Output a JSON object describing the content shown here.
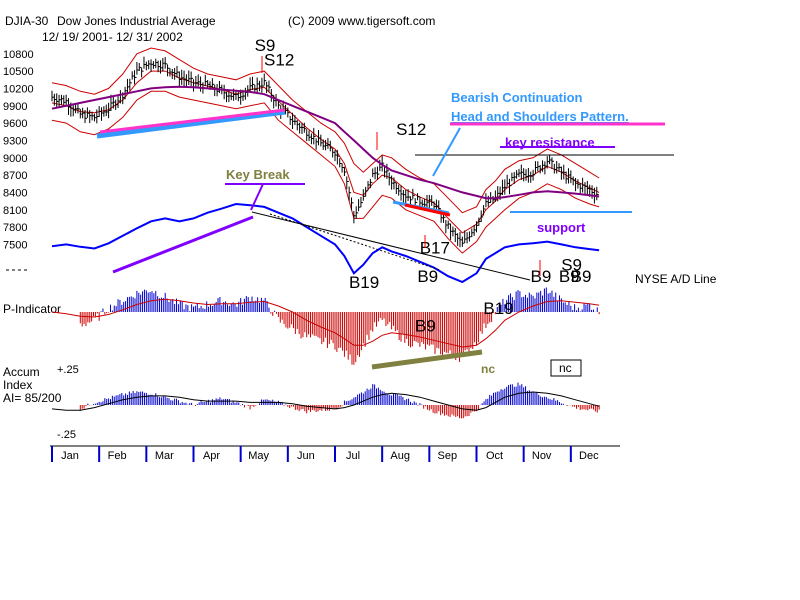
{
  "chart_data": {
    "type": "line",
    "header": {
      "symbol": "DJIA-30",
      "name": "Dow Jones Industrial Average",
      "copyright": "(C) 2009 www.tigersoft.com",
      "date_range": "12/ 19/ 2001- 12/ 31/ 2002"
    },
    "months": [
      "Jan",
      "Feb",
      "Mar",
      "Apr",
      "May",
      "Jun",
      "Jul",
      "Aug",
      "Sep",
      "Oct",
      "Nov",
      "Dec"
    ],
    "price_panel": {
      "y_ticks": [
        "10800",
        "10500",
        "10200",
        "9900",
        "9600",
        "9300",
        "9000",
        "8700",
        "8400",
        "8100",
        "7800",
        "7500"
      ],
      "ylim": [
        7300,
        10900
      ],
      "x_month_index": [
        0.0,
        0.3,
        0.6,
        0.9,
        1.2,
        1.5,
        1.8,
        2.1,
        2.4,
        2.7,
        3.0,
        3.3,
        3.6,
        3.9,
        4.2,
        4.5,
        4.8,
        5.1,
        5.4,
        5.7,
        6.0,
        6.2,
        6.4,
        6.6,
        6.8,
        7.0,
        7.2,
        7.5,
        7.8,
        8.1,
        8.4,
        8.7,
        9.0,
        9.2,
        9.4,
        9.6,
        9.9,
        10.2,
        10.5,
        10.8,
        11.1,
        11.4,
        11.6
      ],
      "close": [
        10050,
        9980,
        9750,
        9700,
        9850,
        10100,
        10500,
        10650,
        10600,
        10400,
        10300,
        10250,
        10150,
        10050,
        10200,
        10300,
        9900,
        9650,
        9450,
        9250,
        9100,
        8800,
        8000,
        8300,
        8700,
        8850,
        8600,
        8350,
        8250,
        8200,
        7800,
        7500,
        7850,
        8200,
        8300,
        8500,
        8700,
        8750,
        8950,
        8750,
        8550,
        8450,
        8350
      ],
      "ma_long": [
        9850,
        9900,
        9950,
        10000,
        10050,
        10100,
        10150,
        10200,
        10220,
        10230,
        10220,
        10200,
        10180,
        10160,
        10140,
        10100,
        10000,
        9900,
        9800,
        9700,
        9600,
        9450,
        9300,
        9150,
        9000,
        8880,
        8780,
        8700,
        8620,
        8560,
        8480,
        8400,
        8340,
        8300,
        8300,
        8320,
        8360,
        8400,
        8420,
        8400,
        8380,
        8350,
        8330
      ],
      "ma_short": [
        9950,
        9900,
        9800,
        9780,
        9830,
        10000,
        10300,
        10500,
        10500,
        10380,
        10300,
        10240,
        10180,
        10100,
        10180,
        10220,
        9980,
        9750,
        9520,
        9320,
        9150,
        8900,
        8400,
        8350,
        8550,
        8700,
        8650,
        8450,
        8320,
        8220,
        7950,
        7700,
        7850,
        8100,
        8250,
        8450,
        8620,
        8700,
        8850,
        8750,
        8600,
        8480,
        8400
      ],
      "band_upper": [
        10300,
        10250,
        10150,
        10100,
        10200,
        10450,
        10800,
        10900,
        10850,
        10700,
        10550,
        10450,
        10400,
        10350,
        10450,
        10500,
        10250,
        10000,
        9800,
        9600,
        9450,
        9250,
        8900,
        8750,
        8900,
        9050,
        9000,
        8800,
        8650,
        8550,
        8300,
        8050,
        8150,
        8450,
        8600,
        8800,
        8950,
        9000,
        9150,
        9050,
        8900,
        8750,
        8650
      ],
      "band_lower": [
        9650,
        9600,
        9450,
        9400,
        9500,
        9700,
        10000,
        10150,
        10150,
        10050,
        10000,
        9950,
        9900,
        9850,
        9900,
        9950,
        9650,
        9450,
        9250,
        9050,
        8850,
        8550,
        7950,
        7950,
        8150,
        8350,
        8300,
        8100,
        8000,
        7900,
        7600,
        7350,
        7550,
        7800,
        7950,
        8100,
        8300,
        8400,
        8550,
        8450,
        8300,
        8200,
        8150
      ],
      "ad_line_label": "NYSE A/D Line",
      "ad_line": [
        7470,
        7500,
        7460,
        7430,
        7520,
        7650,
        7780,
        7900,
        7950,
        7900,
        7950,
        8050,
        8120,
        8200,
        8180,
        8150,
        8050,
        7950,
        7800,
        7650,
        7500,
        7300,
        7000,
        7150,
        7350,
        7450,
        7380,
        7300,
        7200,
        7100,
        6950,
        6850,
        7000,
        7250,
        7350,
        7450,
        7500,
        7520,
        7550,
        7500,
        7450,
        7420,
        7400
      ],
      "signals": [
        {
          "label": "S9",
          "month": 4.55,
          "price": 10950
        },
        {
          "label": "S12",
          "month": 4.75,
          "price": 10700
        },
        {
          "label": "S12",
          "month": 7.55,
          "price": 9500
        },
        {
          "label": "B17",
          "month": 8.05,
          "price": 7450
        },
        {
          "label": "B19",
          "month": 6.55,
          "price": 6850
        },
        {
          "label": "B9",
          "month": 8.0,
          "price": 6950
        },
        {
          "label": "B9",
          "month": 7.95,
          "price": 6100
        },
        {
          "label": "B19",
          "month": 9.4,
          "price": 6400
        },
        {
          "label": "B9",
          "month": 10.4,
          "price": 6950
        },
        {
          "label": "B9",
          "month": 11.0,
          "price": 6950
        },
        {
          "label": "B9",
          "month": 11.25,
          "price": 6950
        },
        {
          "label": "S9",
          "month": 11.05,
          "price": 7150
        }
      ],
      "annotations": {
        "pattern_line1": "Bearish Continuation",
        "pattern_line2": "Head and Shoulders Pattern.",
        "key_resistance": "key resistance",
        "key_resistance_level": 9100,
        "support": "support",
        "key_break": "Key Break"
      },
      "colors": {
        "price_bars": "#000000",
        "band": "#cc0000",
        "ma_long": "#800080",
        "ad_line": "#0000ff",
        "highlight": "#3399ff",
        "magenta": "#ff33cc",
        "support": "#8000ff",
        "key_break": "#808040",
        "nc_text": "#808040"
      }
    },
    "p_indicator": {
      "label": "P-Indicator",
      "x_month_index": [
        0.0,
        0.3,
        0.6,
        0.9,
        1.2,
        1.5,
        1.8,
        2.1,
        2.4,
        2.7,
        3.0,
        3.3,
        3.6,
        3.9,
        4.2,
        4.5,
        4.8,
        5.1,
        5.4,
        5.7,
        6.0,
        6.2,
        6.4,
        6.6,
        6.8,
        7.0,
        7.2,
        7.5,
        7.8,
        8.1,
        8.4,
        8.7,
        9.0,
        9.2,
        9.4,
        9.6,
        9.9,
        10.2,
        10.5,
        10.8,
        11.1,
        11.4,
        11.6
      ],
      "values": [
        5,
        -5,
        -15,
        -10,
        5,
        15,
        25,
        30,
        20,
        10,
        5,
        10,
        15,
        10,
        20,
        15,
        -10,
        -20,
        -30,
        -35,
        -40,
        -50,
        -60,
        -40,
        -20,
        -10,
        -20,
        -35,
        -40,
        -45,
        -50,
        -55,
        -35,
        -15,
        0,
        15,
        25,
        20,
        30,
        15,
        5,
        10,
        0
      ],
      "ylim": [
        -60,
        40
      ],
      "ma": [
        0,
        -2,
        -5,
        -6,
        -3,
        3,
        10,
        15,
        17,
        15,
        12,
        10,
        11,
        11,
        13,
        14,
        8,
        0,
        -10,
        -18,
        -25,
        -32,
        -40,
        -40,
        -35,
        -28,
        -25,
        -27,
        -30,
        -34,
        -38,
        -42,
        -40,
        -32,
        -22,
        -10,
        0,
        8,
        14,
        15,
        13,
        11,
        9
      ],
      "colors": {
        "positive": "#0000cc",
        "negative": "#cc0000",
        "ma": "#cc0000"
      }
    },
    "accum_index": {
      "label_line1": "Accum",
      "label_line2": "Index",
      "label_line3": "AI= 85/200",
      "y_ticks": [
        "+.25",
        "-.25"
      ],
      "ylim": [
        -0.27,
        0.27
      ],
      "x_month_index": [
        0.0,
        0.3,
        0.6,
        0.9,
        1.2,
        1.5,
        1.8,
        2.1,
        2.4,
        2.7,
        3.0,
        3.3,
        3.6,
        3.9,
        4.2,
        4.5,
        4.8,
        5.1,
        5.4,
        5.7,
        6.0,
        6.2,
        6.4,
        6.6,
        6.8,
        7.0,
        7.2,
        7.5,
        7.8,
        8.1,
        8.4,
        8.7,
        9.0,
        9.2,
        9.4,
        9.6,
        9.9,
        10.2,
        10.5,
        10.8,
        11.1,
        11.4,
        11.6
      ],
      "values": [
        -0.05,
        -0.06,
        -0.03,
        0.02,
        0.05,
        0.08,
        0.1,
        0.09,
        0.06,
        0.03,
        0.0,
        0.03,
        0.05,
        0.02,
        -0.02,
        0.04,
        0.02,
        -0.02,
        -0.05,
        -0.04,
        -0.03,
        0.02,
        0.06,
        0.1,
        0.15,
        0.12,
        0.08,
        0.05,
        0.0,
        -0.05,
        -0.08,
        -0.1,
        -0.04,
        0.04,
        0.1,
        0.14,
        0.16,
        0.1,
        0.06,
        0.02,
        -0.02,
        -0.04,
        -0.05
      ],
      "ma": [
        -0.03,
        -0.04,
        -0.04,
        -0.02,
        0.01,
        0.04,
        0.06,
        0.07,
        0.07,
        0.06,
        0.04,
        0.03,
        0.03,
        0.03,
        0.02,
        0.02,
        0.02,
        0.01,
        -0.01,
        -0.02,
        -0.03,
        -0.02,
        0.0,
        0.03,
        0.06,
        0.08,
        0.09,
        0.08,
        0.06,
        0.03,
        0.0,
        -0.03,
        -0.04,
        -0.02,
        0.02,
        0.06,
        0.09,
        0.1,
        0.09,
        0.07,
        0.04,
        0.01,
        -0.01
      ],
      "nc_label_1": "nc",
      "nc_label_2": "nc",
      "colors": {
        "positive": "#0000cc",
        "negative": "#cc0000",
        "ma": "#000000"
      }
    }
  }
}
